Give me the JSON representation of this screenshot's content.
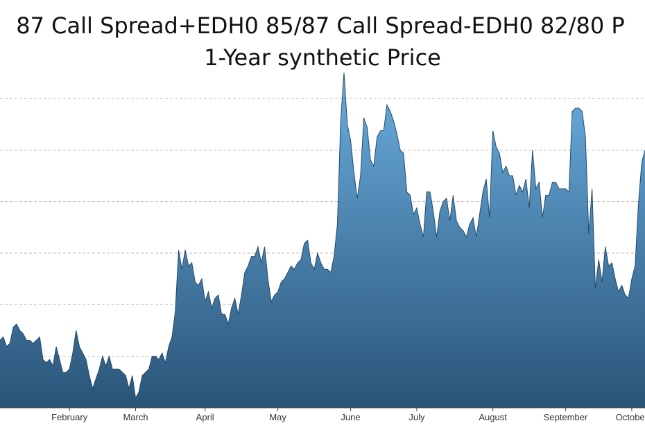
{
  "chart_data": {
    "type": "area",
    "title_line1": "87 Call Spread+EDH0 85/87 Call Spread-EDH0 82/80 P",
    "title_line2": "1-Year synthetic Price",
    "xlabel": "",
    "ylabel": "",
    "grid": true,
    "x_tick_labels": [
      "February",
      "March",
      "April",
      "May",
      "June",
      "July",
      "August",
      "September",
      "October"
    ],
    "x_tick_positions": [
      21,
      41,
      62,
      84,
      106,
      126,
      149,
      171,
      191
    ],
    "x_range": [
      0,
      195
    ],
    "y_range": [
      0,
      100
    ],
    "gridline_values": [
      16,
      32,
      48,
      64,
      80,
      96
    ],
    "fill_top_color": "#6aaddf",
    "fill_bottom_color": "#2a5478",
    "x": [
      0,
      1,
      2,
      3,
      4,
      5,
      6,
      7,
      8,
      9,
      10,
      11,
      12,
      13,
      14,
      15,
      16,
      17,
      18,
      19,
      20,
      21,
      22,
      23,
      24,
      25,
      26,
      27,
      28,
      29,
      30,
      31,
      32,
      33,
      34,
      35,
      36,
      37,
      38,
      39,
      40,
      41,
      42,
      43,
      44,
      45,
      46,
      47,
      48,
      49,
      50,
      51,
      52,
      53,
      54,
      55,
      56,
      57,
      58,
      59,
      60,
      61,
      62,
      63,
      64,
      65,
      66,
      67,
      68,
      69,
      70,
      71,
      72,
      73,
      74,
      75,
      76,
      77,
      78,
      79,
      80,
      81,
      82,
      83,
      84,
      85,
      86,
      87,
      88,
      89,
      90,
      91,
      92,
      93,
      94,
      95,
      96,
      97,
      98,
      99,
      100,
      101,
      102,
      103,
      104,
      105,
      106,
      107,
      108,
      109,
      110,
      111,
      112,
      113,
      114,
      115,
      116,
      117,
      118,
      119,
      120,
      121,
      122,
      123,
      124,
      125,
      126,
      127,
      128,
      129,
      130,
      131,
      132,
      133,
      134,
      135,
      136,
      137,
      138,
      139,
      140,
      141,
      142,
      143,
      144,
      145,
      146,
      147,
      148,
      149,
      150,
      151,
      152,
      153,
      154,
      155,
      156,
      157,
      158,
      159,
      160,
      161,
      162,
      163,
      164,
      165,
      166,
      167,
      168,
      169,
      170,
      171,
      172,
      173,
      174,
      175,
      176,
      177,
      178,
      179,
      180,
      181,
      182,
      183,
      184,
      185,
      186,
      187,
      188,
      189,
      190,
      191,
      192,
      193,
      194,
      195
    ],
    "y": [
      21,
      22,
      19,
      20,
      25,
      26,
      24,
      23,
      21,
      21,
      20,
      21,
      22,
      15,
      14,
      15,
      13,
      19,
      15,
      11,
      11,
      12,
      17,
      24,
      19,
      17,
      15,
      10,
      6,
      9,
      12,
      16,
      13,
      16,
      12,
      12,
      12,
      11,
      10,
      6,
      10,
      3,
      5,
      10,
      11,
      12,
      16,
      16,
      15,
      17,
      14,
      19,
      22,
      30,
      49,
      43,
      49,
      44,
      45,
      39,
      38,
      40,
      33,
      36,
      31,
      34,
      35,
      29,
      29,
      26,
      31,
      34,
      29,
      35,
      42,
      44,
      47,
      47,
      50,
      45,
      50,
      40,
      33,
      35,
      36,
      39,
      40,
      42,
      44,
      43,
      45,
      46,
      51,
      52,
      45,
      43,
      48,
      45,
      43,
      43,
      42,
      47,
      57,
      89,
      104,
      88,
      83,
      73,
      65,
      72,
      90,
      87,
      77,
      75,
      84,
      86,
      86,
      94,
      92,
      89,
      85,
      80,
      79,
      67,
      66,
      60,
      62,
      57,
      53,
      67,
      67,
      61,
      53,
      61,
      64,
      65,
      58,
      66,
      58,
      56,
      55,
      53,
      57,
      59,
      53,
      60,
      67,
      71,
      59,
      86,
      81,
      79,
      73,
      75,
      72,
      72,
      66,
      69,
      67,
      71,
      62,
      80,
      68,
      70,
      59,
      66,
      66,
      70,
      70,
      68,
      68,
      68,
      67,
      92,
      93,
      93,
      92,
      84,
      54,
      68,
      37,
      46,
      39,
      50,
      44,
      45,
      40,
      36,
      38,
      35,
      34,
      40,
      44,
      63,
      76,
      80
    ]
  }
}
